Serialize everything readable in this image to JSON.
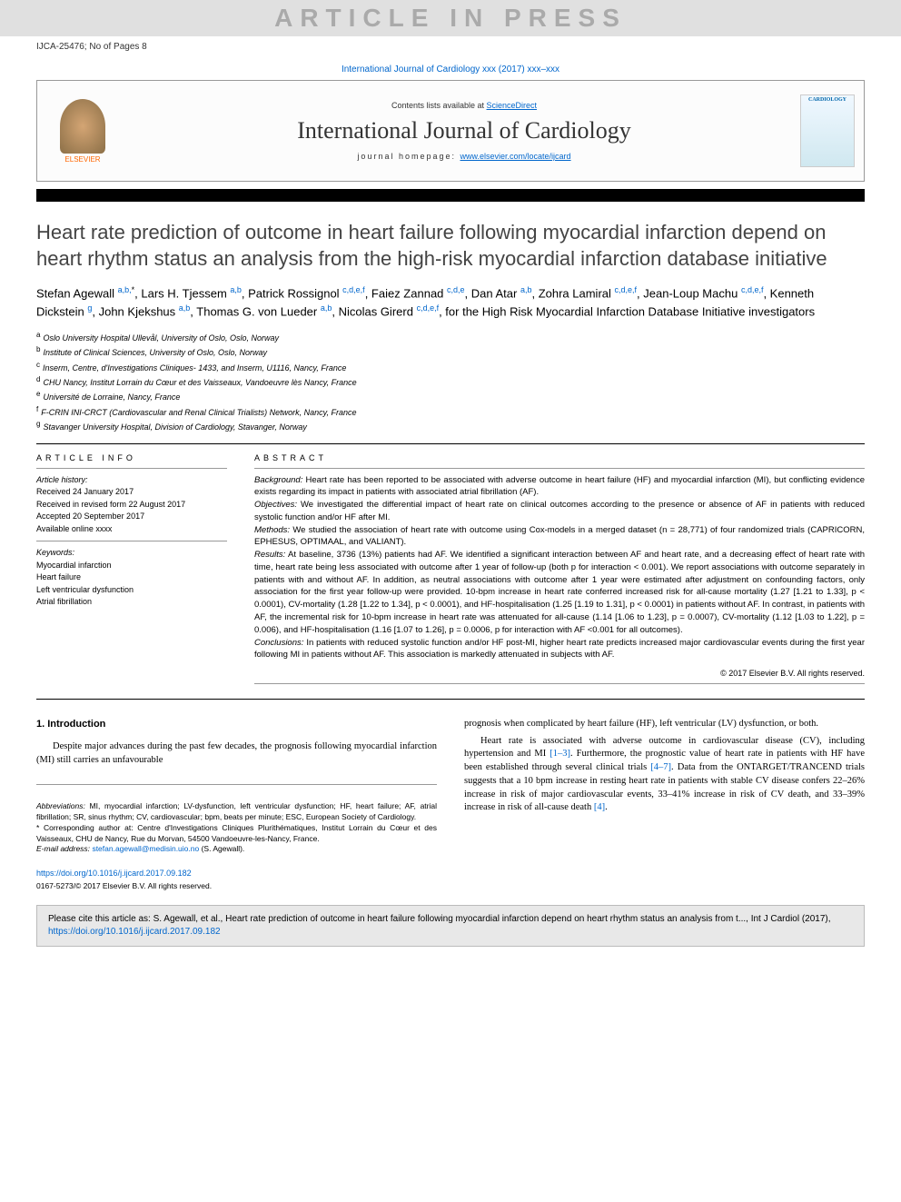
{
  "watermark": "ARTICLE IN PRESS",
  "press_info": "IJCA-25476; No of Pages 8",
  "journal_ref": "International Journal of Cardiology xxx (2017) xxx–xxx",
  "header": {
    "contents_prefix": "Contents lists available at ",
    "contents_link": "ScienceDirect",
    "journal_name": "International Journal of Cardiology",
    "homepage_prefix": "journal homepage: ",
    "homepage_url": "www.elsevier.com/locate/ijcard",
    "elsevier": "ELSEVIER",
    "cover_text": "CARDIOLOGY"
  },
  "title": "Heart rate prediction of outcome in heart failure following myocardial infarction depend on heart rhythm status an analysis from the high-risk myocardial infarction database initiative",
  "authors_html": "Stefan Agewall <sup>a,b,</sup><sup class='star'>*</sup>, Lars H. Tjessem <sup>a,b</sup>, Patrick Rossignol <sup>c,d,e,f</sup>, Faiez Zannad <sup>c,d,e</sup>, Dan Atar <sup>a,b</sup>, Zohra Lamiral <sup>c,d,e,f</sup>, Jean-Loup Machu <sup>c,d,e,f</sup>, Kenneth Dickstein <sup>g</sup>, John Kjekshus <sup>a,b</sup>, Thomas G. von Lueder <sup>a,b</sup>, Nicolas Girerd <sup>c,d,e,f</sup>, for the High Risk Myocardial Infarction Database Initiative investigators",
  "affiliations": [
    {
      "sup": "a",
      "text": "Oslo University Hospital Ullevål, University of Oslo, Oslo, Norway"
    },
    {
      "sup": "b",
      "text": "Institute of Clinical Sciences, University of Oslo, Oslo, Norway"
    },
    {
      "sup": "c",
      "text": "Inserm, Centre, d'Investigations Cliniques- 1433, and Inserm, U1116, Nancy, France"
    },
    {
      "sup": "d",
      "text": "CHU Nancy, Institut Lorrain du Cœur et des Vaisseaux, Vandoeuvre lès Nancy, France"
    },
    {
      "sup": "e",
      "text": "Université de Lorraine, Nancy, France"
    },
    {
      "sup": "f",
      "text": "F-CRIN INI-CRCT (Cardiovascular and Renal Clinical Trialists) Network, Nancy, France"
    },
    {
      "sup": "g",
      "text": "Stavanger University Hospital, Division of Cardiology, Stavanger, Norway"
    }
  ],
  "info": {
    "header": "ARTICLE INFO",
    "history_label": "Article history:",
    "history": [
      "Received 24 January 2017",
      "Received in revised form 22 August 2017",
      "Accepted 20 September 2017",
      "Available online xxxx"
    ],
    "keywords_label": "Keywords:",
    "keywords": [
      "Myocardial infarction",
      "Heart failure",
      "Left ventricular dysfunction",
      "Atrial fibrillation"
    ]
  },
  "abstract": {
    "header": "ABSTRACT",
    "segments": [
      {
        "label": "Background:",
        "text": " Heart rate has been reported to be associated with adverse outcome in heart failure (HF) and myocardial infarction (MI), but conflicting evidence exists regarding its impact in patients with associated atrial fibrillation (AF)."
      },
      {
        "label": "Objectives:",
        "text": " We investigated the differential impact of heart rate on clinical outcomes according to the presence or absence of AF in patients with reduced systolic function and/or HF after MI."
      },
      {
        "label": "Methods:",
        "text": " We studied the association of heart rate with outcome using Cox-models in a merged dataset (n = 28,771) of four randomized trials (CAPRICORN, EPHESUS, OPTIMAAL, and VALIANT)."
      },
      {
        "label": "Results:",
        "text": " At baseline, 3736 (13%) patients had AF. We identified a significant interaction between AF and heart rate, and a decreasing effect of heart rate with time, heart rate being less associated with outcome after 1 year of follow-up (both p for interaction < 0.001). We report associations with outcome separately in patients with and without AF. In addition, as neutral associations with outcome after 1 year were estimated after adjustment on confounding factors, only association for the first year follow-up were provided. 10-bpm increase in heart rate conferred increased risk for all-cause mortality (1.27 [1.21 to 1.33], p < 0.0001), CV-mortality (1.28 [1.22 to 1.34], p < 0.0001), and HF-hospitalisation (1.25 [1.19 to 1.31], p < 0.0001) in patients without AF. In contrast, in patients with AF, the incremental risk for 10-bpm increase in heart rate was attenuated for all-cause (1.14 [1.06 to 1.23], p = 0.0007), CV-mortality (1.12 [1.03 to 1.22], p = 0.006), and HF-hospitalisation (1.16 [1.07 to 1.26], p = 0.0006, p for interaction with AF <0.001 for all outcomes)."
      },
      {
        "label": "Conclusions:",
        "text": " In patients with reduced systolic function and/or HF post-MI, higher heart rate predicts increased major cardiovascular events during the first year following MI in patients without AF. This association is markedly attenuated in subjects with AF."
      }
    ],
    "copyright": "© 2017 Elsevier B.V. All rights reserved."
  },
  "body": {
    "section_heading": "1. Introduction",
    "left_p1": "Despite major advances during the past few decades, the prognosis following myocardial infarction (MI) still carries an unfavourable",
    "right_p1": "prognosis when complicated by heart failure (HF), left ventricular (LV) dysfunction, or both.",
    "right_p2_a": "Heart rate is associated with adverse outcome in cardiovascular disease (CV), including hypertension and MI ",
    "right_p2_ref1": "[1–3]",
    "right_p2_b": ". Furthermore, the prognostic value of heart rate in patients with HF have been established through several clinical trials ",
    "right_p2_ref2": "[4–7]",
    "right_p2_c": ". Data from the ONTARGET/TRANCEND trials suggests that a 10 bpm increase in resting heart rate in patients with stable CV disease confers 22–26% increase in risk of major cardiovascular events, 33–41% increase in risk of CV death, and 33–39% increase in risk of all-cause death ",
    "right_p2_ref3": "[4]",
    "right_p2_d": "."
  },
  "footnotes": {
    "abbrev_label": "Abbreviations:",
    "abbrev_text": " MI, myocardial infarction; LV-dysfunction, left ventricular dysfunction; HF, heart failure; AF, atrial fibrillation; SR, sinus rhythm; CV, cardiovascular; bpm, beats per minute; ESC, European Society of Cardiology.",
    "corr_text": "* Corresponding author at: Centre d'Investigations Cliniques Plurithématiques, Institut Lorrain du Cœur et des Vaisseaux, CHU de Nancy, Rue du Morvan, 54500 Vandoeuvre-les-Nancy, France.",
    "email_label": "E-mail address:",
    "email": "stefan.agewall@medisin.uio.no",
    "email_suffix": " (S. Agewall)."
  },
  "doi": "https://doi.org/10.1016/j.ijcard.2017.09.182",
  "issn": "0167-5273/© 2017 Elsevier B.V. All rights reserved.",
  "cite": {
    "prefix": "Please cite this article as: S. Agewall, et al., Heart rate prediction of outcome in heart failure following myocardial infarction depend on heart rhythm status an analysis from t..., Int J Cardiol (2017), ",
    "link": "https://doi.org/10.1016/j.ijcard.2017.09.182"
  },
  "colors": {
    "link": "#0066cc",
    "watermark_bg": "#e0e0e0",
    "watermark_fg": "#aaaaaa",
    "cite_bg": "#e8e8e8"
  }
}
